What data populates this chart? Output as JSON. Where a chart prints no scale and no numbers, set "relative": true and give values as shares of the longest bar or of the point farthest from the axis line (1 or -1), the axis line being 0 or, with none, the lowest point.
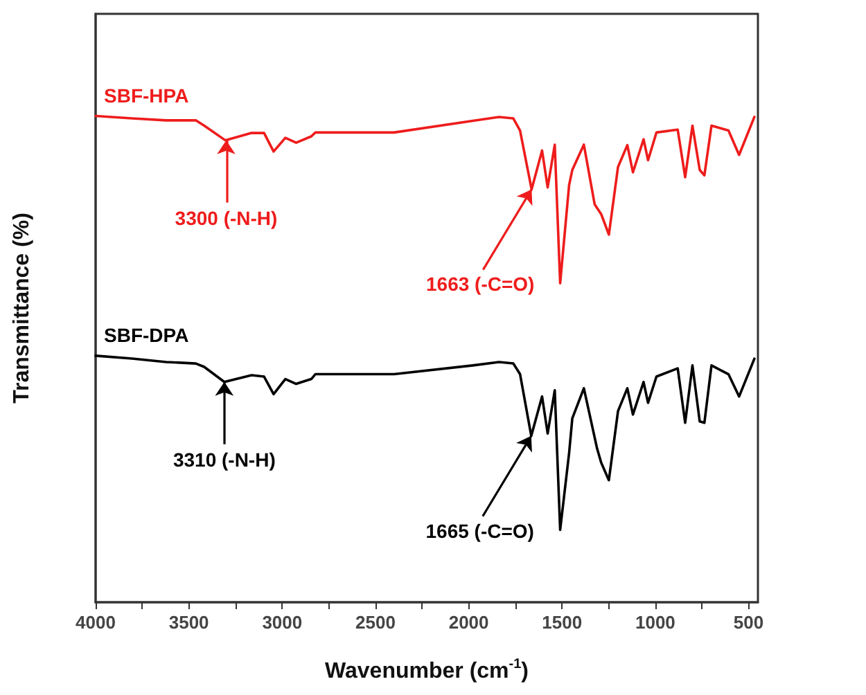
{
  "chart_data": {
    "type": "line",
    "relative": true,
    "xlabel": "Wavenumber (cm$^{-1}$)",
    "ylabel": "Transmittance (%)",
    "xlim": [
      4000,
      450
    ],
    "xticks": [
      4000,
      {
        "value": 3750,
        "label": null
      },
      3500,
      {
        "value": 3250,
        "label": null
      },
      3000,
      {
        "value": 2750,
        "label": null
      },
      2500,
      {
        "value": 2250,
        "label": null
      },
      2000,
      {
        "value": 1750,
        "label": null
      },
      1500,
      {
        "value": 1250,
        "label": null
      },
      1000,
      {
        "value": 750,
        "label": null
      },
      500
    ],
    "grid": false,
    "legend": false,
    "marker": "none",
    "line_style": "solid",
    "series": [
      {
        "name": "SBF-HPA",
        "color": "#ee1c1c",
        "x": [
          4000,
          3804,
          3622,
          3463,
          3418,
          3305,
          3164,
          3097,
          3046,
          2983,
          2925,
          2844,
          2822,
          2400,
          1978,
          1838,
          1761,
          1725,
          1663,
          1607,
          1577,
          1539,
          1510,
          1462,
          1445,
          1383,
          1325,
          1290,
          1249,
          1200,
          1150,
          1120,
          1063,
          1039,
          994,
          880,
          840,
          801,
          762,
          737,
          699,
          608,
          551,
          469
        ],
        "values": [
          1.0,
          0.995,
          0.991,
          0.991,
          0.98,
          0.95,
          0.965,
          0.965,
          0.927,
          0.955,
          0.945,
          0.958,
          0.966,
          0.966,
          0.99,
          0.998,
          0.995,
          0.97,
          0.849,
          0.929,
          0.853,
          0.941,
          0.656,
          0.858,
          0.889,
          0.941,
          0.818,
          0.798,
          0.756,
          0.895,
          0.94,
          0.884,
          0.952,
          0.909,
          0.966,
          0.972,
          0.874,
          0.98,
          0.889,
          0.878,
          0.98,
          0.97,
          0.92,
          0.998
        ]
      },
      {
        "name": "SBF-DPA",
        "color": "#000000",
        "x": [
          4000,
          3804,
          3622,
          3463,
          3418,
          3310,
          3164,
          3097,
          3046,
          2983,
          2925,
          2844,
          2822,
          2400,
          1978,
          1838,
          1761,
          1725,
          1665,
          1607,
          1577,
          1539,
          1510,
          1462,
          1445,
          1383,
          1312,
          1290,
          1249,
          1200,
          1150,
          1120,
          1063,
          1039,
          994,
          880,
          840,
          801,
          762,
          737,
          699,
          608,
          551,
          469
        ],
        "values": [
          0.507,
          0.501,
          0.494,
          0.491,
          0.484,
          0.453,
          0.467,
          0.464,
          0.428,
          0.459,
          0.449,
          0.459,
          0.469,
          0.469,
          0.487,
          0.494,
          0.491,
          0.469,
          0.342,
          0.423,
          0.347,
          0.436,
          0.149,
          0.307,
          0.378,
          0.44,
          0.316,
          0.287,
          0.251,
          0.393,
          0.44,
          0.386,
          0.453,
          0.41,
          0.464,
          0.481,
          0.369,
          0.487,
          0.372,
          0.369,
          0.487,
          0.469,
          0.423,
          0.501
        ]
      }
    ],
    "annotations": [
      {
        "text": "3300 (-N-H)",
        "x": 3300,
        "y": 0.95
      },
      {
        "text": "1663 (-C=O)",
        "x": 1663,
        "y": 0.849
      },
      {
        "text": "3310 (-N-H)",
        "x": 3310,
        "y": 0.453
      },
      {
        "text": "1665 (-C=O)",
        "x": 1665,
        "y": 0.342
      }
    ]
  }
}
